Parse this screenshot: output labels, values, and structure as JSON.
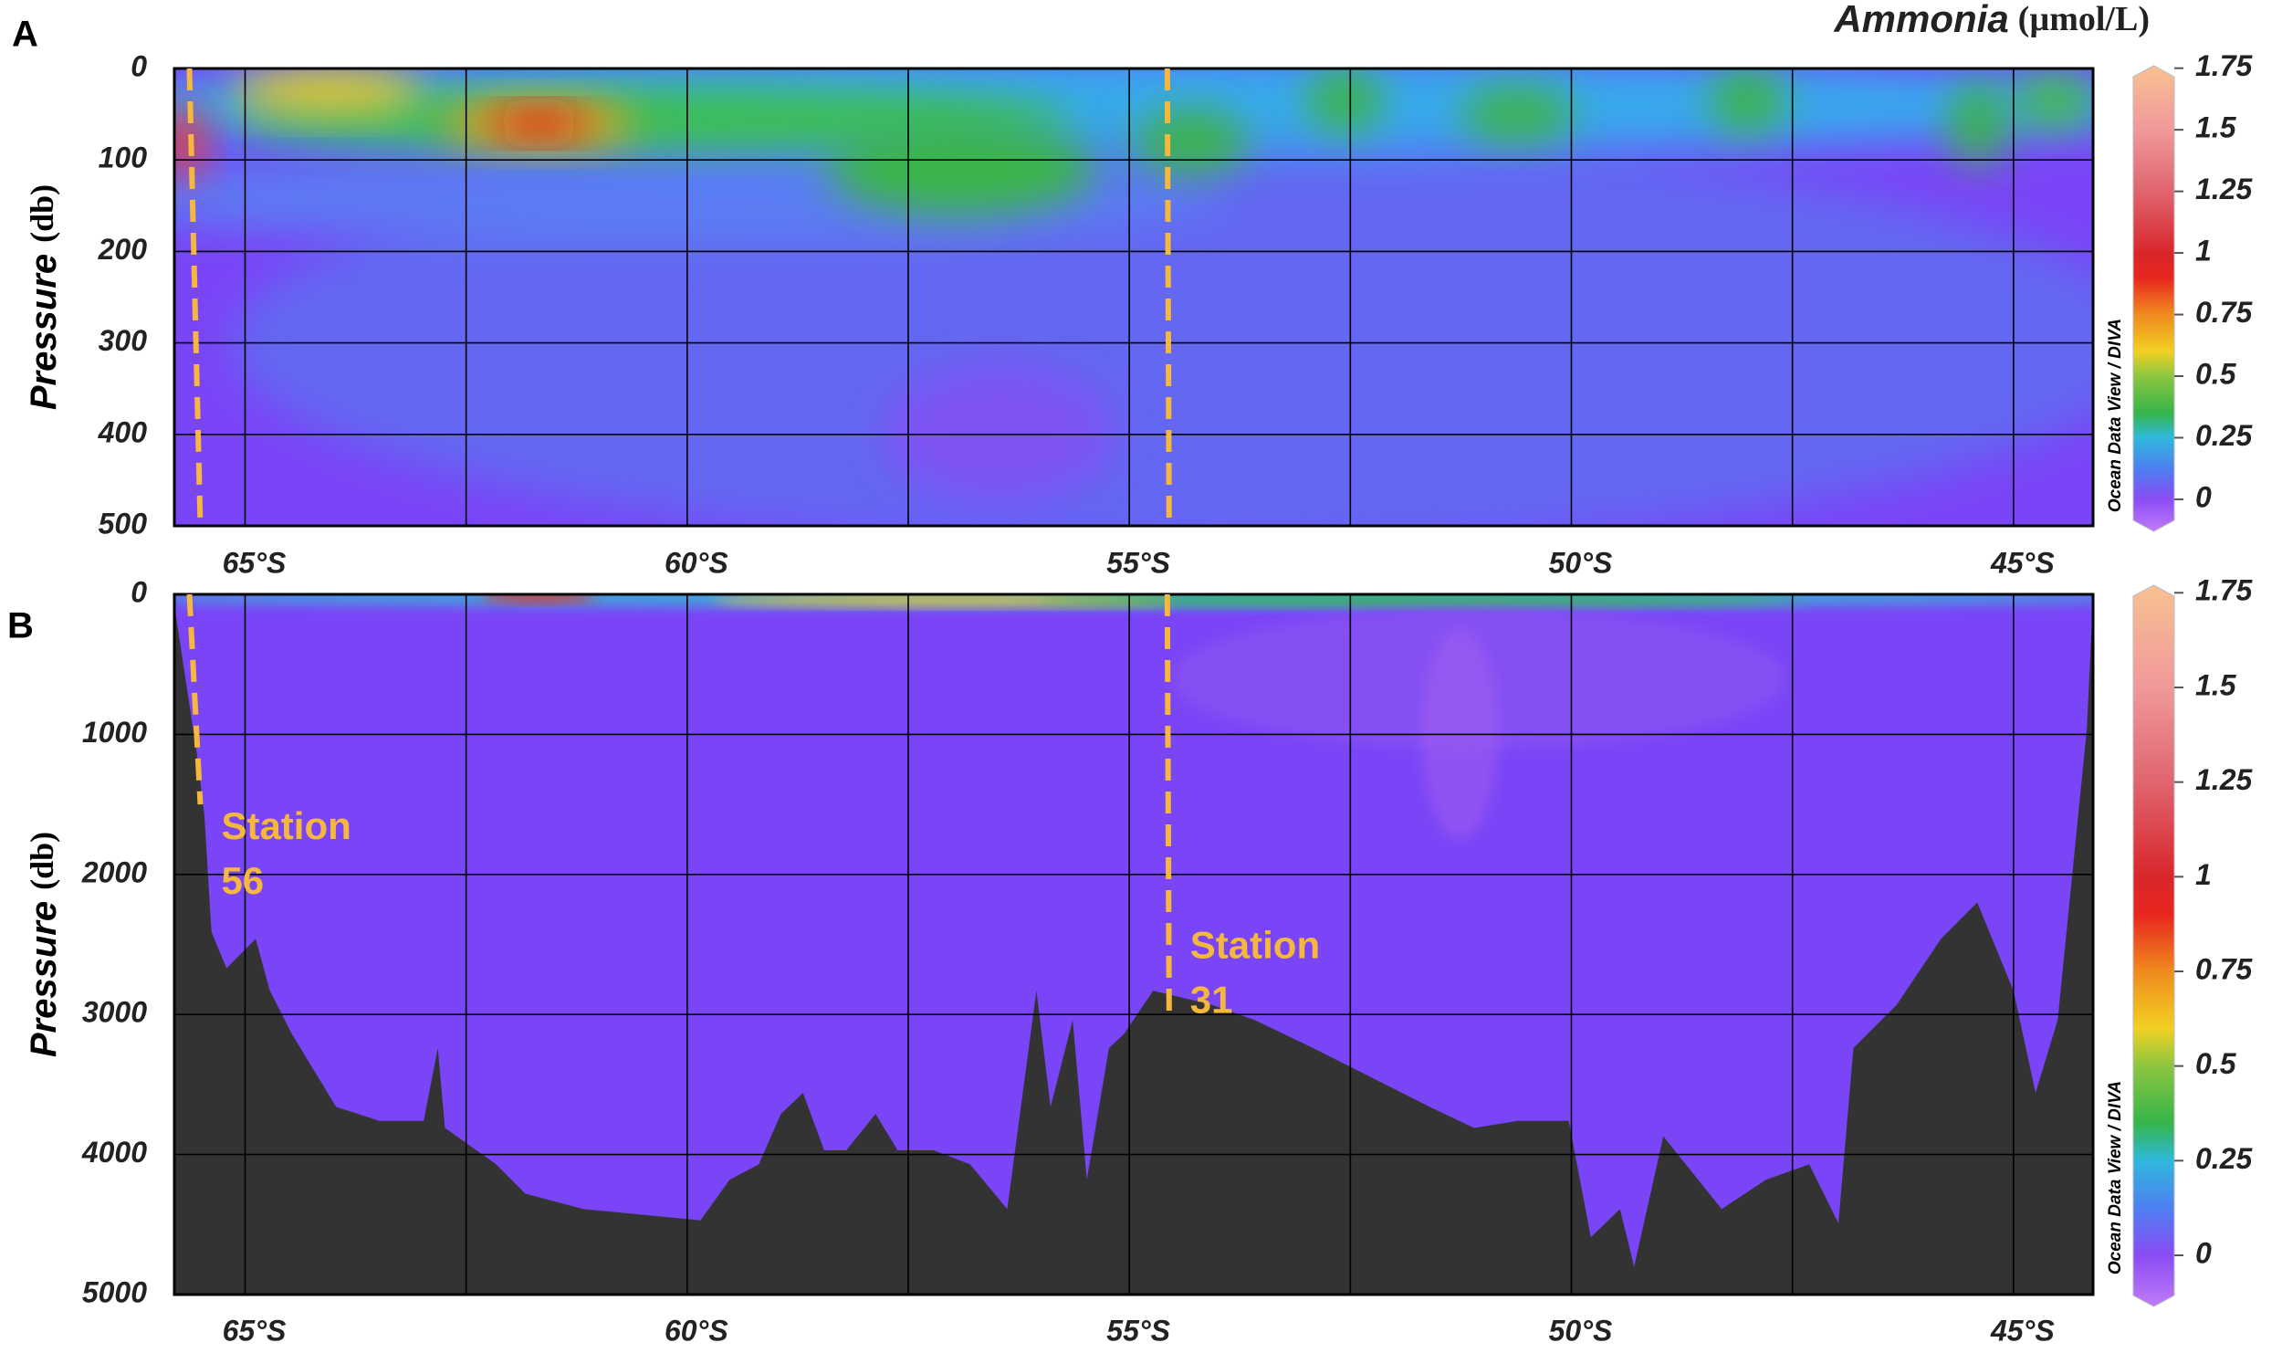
{
  "chart_data": [
    {
      "type": "section",
      "panel": "A",
      "title": "Ammonia",
      "title_unit": "(µmol/L)",
      "ylabel": "Pressure",
      "ylabel_unit": "(db)",
      "xlim": [
        -65.8,
        -44.1
      ],
      "xticks": [
        {
          "value": -65,
          "label": "65°S"
        },
        {
          "value": -60,
          "label": "60°S"
        },
        {
          "value": -55,
          "label": "55°S"
        },
        {
          "value": -50,
          "label": "50°S"
        },
        {
          "value": -45,
          "label": "45°S"
        }
      ],
      "xminor": [
        -62.5,
        -57.5,
        -52.5,
        -47.5
      ],
      "ylim": [
        0,
        500
      ],
      "y_inverted": true,
      "yticks": [
        0,
        100,
        200,
        300,
        400,
        500
      ],
      "grid": true,
      "colorbar": {
        "lim": [
          -0.13,
          1.76
        ],
        "ticks": [
          1.75,
          1.5,
          1.25,
          1,
          0.75,
          0.5,
          0.25,
          0
        ],
        "credit": "Ocean Data View / DIVA",
        "colormap": [
          [
            -0.13,
            "#c07af8"
          ],
          [
            0,
            "#8a4cf5"
          ],
          [
            0.12,
            "#4f7df2"
          ],
          [
            0.25,
            "#2fb8dc"
          ],
          [
            0.35,
            "#35b54a"
          ],
          [
            0.5,
            "#8cc63f"
          ],
          [
            0.6,
            "#f2d022"
          ],
          [
            0.75,
            "#f08a1e"
          ],
          [
            0.9,
            "#e8261e"
          ],
          [
            1,
            "#d8262b"
          ],
          [
            1.25,
            "#e0656f"
          ],
          [
            1.5,
            "#f0999a"
          ],
          [
            1.76,
            "#f9c192"
          ]
        ]
      },
      "stations": [
        {
          "lat": -65.63
        },
        {
          "lat": -54.57
        }
      ]
    },
    {
      "type": "section",
      "panel": "B",
      "ylabel": "Pressure",
      "ylabel_unit": "(db)",
      "xlim": [
        -65.8,
        -44.1
      ],
      "xticks": [
        {
          "value": -65,
          "label": "65°S"
        },
        {
          "value": -60,
          "label": "60°S"
        },
        {
          "value": -55,
          "label": "55°S"
        },
        {
          "value": -50,
          "label": "50°S"
        },
        {
          "value": -45,
          "label": "45°S"
        }
      ],
      "xminor": [
        -62.5,
        -57.5,
        -52.5,
        -47.5
      ],
      "ylim": [
        0,
        5000
      ],
      "y_inverted": true,
      "yticks": [
        0,
        1000,
        2000,
        3000,
        4000,
        5000
      ],
      "grid": true,
      "colorbar": {
        "lim": [
          -0.135,
          1.77
        ],
        "ticks": [
          1.75,
          1.5,
          1.25,
          1,
          0.75,
          0.5,
          0.25,
          0
        ],
        "credit": "Ocean Data View / DIVA",
        "colormap": [
          [
            -0.135,
            "#c07af8"
          ],
          [
            0,
            "#8a4cf5"
          ],
          [
            0.12,
            "#4f7df2"
          ],
          [
            0.25,
            "#2fb8dc"
          ],
          [
            0.35,
            "#35b54a"
          ],
          [
            0.5,
            "#8cc63f"
          ],
          [
            0.6,
            "#f2d022"
          ],
          [
            0.75,
            "#f08a1e"
          ],
          [
            0.9,
            "#e8261e"
          ],
          [
            1,
            "#d8262b"
          ],
          [
            1.25,
            "#e0656f"
          ],
          [
            1.5,
            "#f0999a"
          ],
          [
            1.77,
            "#f9c192"
          ]
        ]
      },
      "stations": [
        {
          "lat": -65.63,
          "label": [
            "Station",
            "56"
          ]
        },
        {
          "lat": -54.57,
          "label": [
            "Station",
            "31"
          ]
        }
      ],
      "bathymetry": {
        "color": "#333333",
        "x": [
          -65.79,
          -65.54,
          -65.46,
          -65.38,
          -65.21,
          -64.88,
          -64.72,
          -64.47,
          -63.97,
          -63.48,
          -62.98,
          -62.82,
          -62.74,
          -62.16,
          -61.83,
          -61.17,
          -59.85,
          -59.52,
          -59.19,
          -58.94,
          -58.69,
          -58.45,
          -58.2,
          -57.87,
          -57.62,
          -57.21,
          -56.8,
          -56.38,
          -56.05,
          -55.89,
          -55.64,
          -55.48,
          -55.23,
          -55.06,
          -54.73,
          -54.07,
          -53.58,
          -52.92,
          -52.26,
          -51.6,
          -51.1,
          -50.61,
          -50.03,
          -49.78,
          -49.45,
          -49.29,
          -48.96,
          -48.3,
          -47.8,
          -47.31,
          -46.98,
          -46.81,
          -46.32,
          -45.82,
          -45.41,
          -45.0,
          -44.75,
          -44.5,
          -44.17,
          -44.1
        ],
        "depth": [
          120,
          1160,
          1580,
          2410,
          2670,
          2460,
          2830,
          3140,
          3660,
          3760,
          3760,
          3240,
          3810,
          4070,
          4280,
          4390,
          4470,
          4180,
          4070,
          3710,
          3560,
          3970,
          3970,
          3710,
          3970,
          3970,
          4070,
          4390,
          2830,
          3660,
          3040,
          4180,
          3240,
          3140,
          2830,
          2930,
          3040,
          3240,
          3450,
          3660,
          3810,
          3760,
          3760,
          4590,
          4390,
          4800,
          3870,
          4390,
          4180,
          4070,
          4490,
          3240,
          2930,
          2460,
          2200,
          2830,
          3560,
          3040,
          960,
          20
        ]
      }
    }
  ]
}
